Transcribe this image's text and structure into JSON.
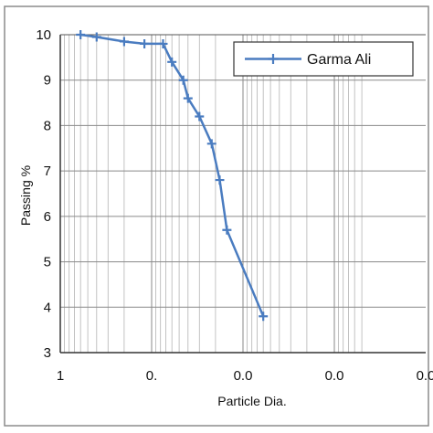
{
  "chart_data": {
    "type": "line",
    "xscale": "log",
    "x_reversed": true,
    "xlim": [
      0.0005,
      1
    ],
    "ylim": [
      3,
      10
    ],
    "grid": true,
    "xlabel": "Particle Dia.",
    "ylabel": "Passing %",
    "legend_position": "top-right",
    "x_tick_labels": [
      "1",
      "0.",
      "0.0",
      "0.0",
      "0.0"
    ],
    "y_tick_labels": [
      "3",
      "4",
      "5",
      "6",
      "7",
      "8",
      "9",
      "10"
    ],
    "series": [
      {
        "name": "Garma Ali",
        "color": "#4a7cc0",
        "marker": "plus",
        "points": [
          {
            "x": 0.6,
            "y": 10.0
          },
          {
            "x": 0.4,
            "y": 9.95
          },
          {
            "x": 0.2,
            "y": 9.85
          },
          {
            "x": 0.12,
            "y": 9.8
          },
          {
            "x": 0.075,
            "y": 9.8
          },
          {
            "x": 0.06,
            "y": 9.4
          },
          {
            "x": 0.045,
            "y": 9.0
          },
          {
            "x": 0.04,
            "y": 8.6
          },
          {
            "x": 0.03,
            "y": 8.2
          },
          {
            "x": 0.022,
            "y": 7.6
          },
          {
            "x": 0.018,
            "y": 6.8
          },
          {
            "x": 0.015,
            "y": 5.7
          },
          {
            "x": 0.006,
            "y": 3.8
          }
        ]
      }
    ]
  }
}
